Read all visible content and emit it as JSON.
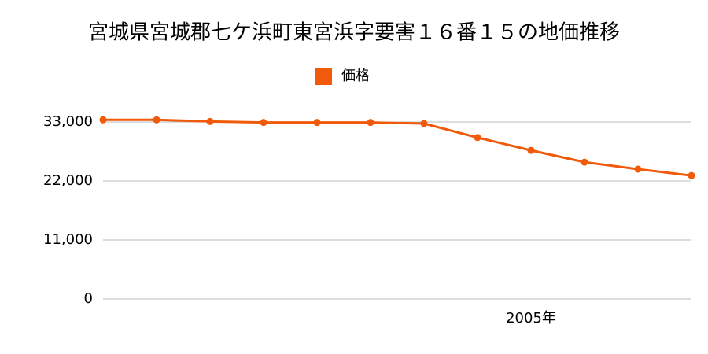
{
  "chart_data": {
    "type": "line",
    "title": "宮城県宮城郡七ケ浜町東宮浜字要害１６番１５の地価推移",
    "categories": [
      null,
      null,
      null,
      null,
      null,
      null,
      null,
      null,
      "2005年",
      null,
      null,
      null
    ],
    "series": [
      {
        "name": "価格",
        "color": "#f05a0a",
        "values": [
          33400,
          33400,
          33100,
          32900,
          32900,
          32900,
          32700,
          30100,
          27700,
          25500,
          24200,
          23000
        ]
      }
    ],
    "ylim": [
      0,
      33000
    ],
    "yticks": [
      0,
      {
        "value": 11000,
        "label": "11,000"
      },
      {
        "value": 22000,
        "label": "22,000"
      },
      {
        "value": 33000,
        "label": "33,000"
      }
    ],
    "grid": true,
    "legend": "top"
  }
}
